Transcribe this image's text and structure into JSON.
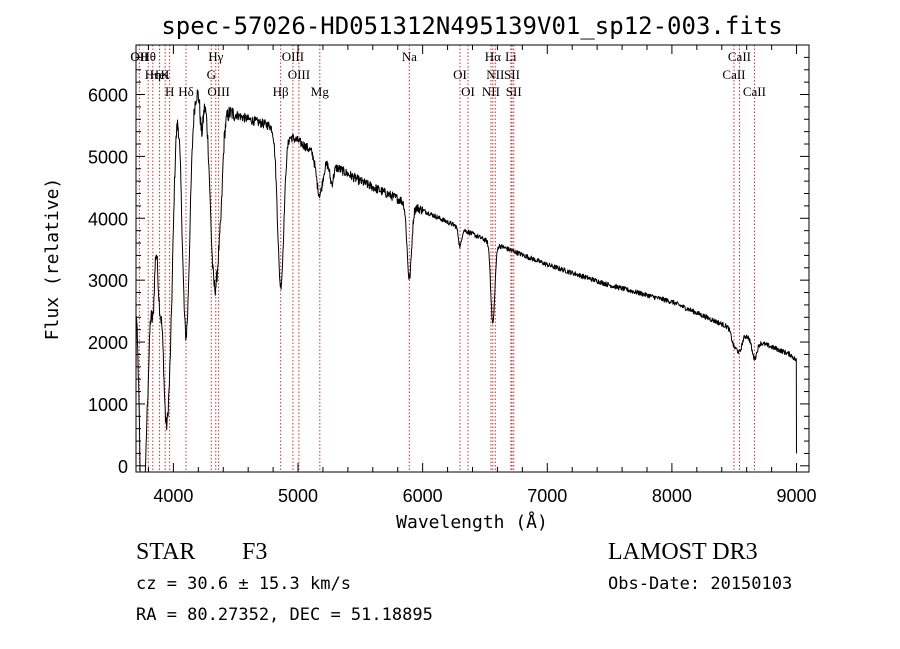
{
  "chart_data": {
    "type": "line",
    "title": "spec-57026-HD051312N495139V01_sp12-003.fits",
    "xlabel": "Wavelength (Å)",
    "ylabel": "Flux (relative)",
    "xlim": [
      3700,
      9100
    ],
    "ylim": [
      -100,
      6800
    ],
    "x_ticks": [
      4000,
      5000,
      6000,
      7000,
      8000,
      9000
    ],
    "y_ticks": [
      0,
      1000,
      2000,
      3000,
      4000,
      5000,
      6000
    ],
    "grid": false,
    "series": [
      {
        "name": "spectrum",
        "continuum": [
          [
            3700,
            4200
          ],
          [
            3760,
            5100
          ],
          [
            3850,
            5800
          ],
          [
            3950,
            6050
          ],
          [
            4050,
            6150
          ],
          [
            4200,
            6050
          ],
          [
            4400,
            5750
          ],
          [
            4600,
            5600
          ],
          [
            4800,
            5480
          ],
          [
            5000,
            5250
          ],
          [
            5200,
            4950
          ],
          [
            5500,
            4600
          ],
          [
            5900,
            4220
          ],
          [
            6000,
            4130
          ],
          [
            6500,
            3650
          ],
          [
            7000,
            3250
          ],
          [
            7500,
            2920
          ],
          [
            8000,
            2650
          ],
          [
            8500,
            2200
          ],
          [
            8700,
            2000
          ],
          [
            8950,
            1800
          ],
          [
            9000,
            1700
          ]
        ],
        "absorption": [
          [
            3734,
            3000,
            30
          ],
          [
            3750,
            3200,
            15
          ],
          [
            3771,
            2800,
            15
          ],
          [
            3798,
            2800,
            15
          ],
          [
            3835,
            3000,
            18
          ],
          [
            3889,
            3000,
            22
          ],
          [
            3934,
            3000,
            20
          ],
          [
            3970,
            4000,
            28
          ],
          [
            4101,
            4000,
            30
          ],
          [
            4227,
            600,
            12
          ],
          [
            4308,
            500,
            20
          ],
          [
            4340,
            2800,
            35
          ],
          [
            4384,
            400,
            12
          ],
          [
            4861,
            2500,
            25
          ],
          [
            5172,
            600,
            25
          ],
          [
            5270,
            300,
            15
          ],
          [
            5893,
            1200,
            18
          ],
          [
            6300,
            300,
            12
          ],
          [
            6563,
            1300,
            16
          ],
          [
            8498,
            250,
            20
          ],
          [
            8542,
            300,
            20
          ],
          [
            8662,
            300,
            20
          ]
        ]
      }
    ],
    "spectral_lines": [
      {
        "label": "Hθ",
        "wavelength": 3798
      },
      {
        "label": "K",
        "wavelength": 3934
      },
      {
        "label": "Hδ",
        "wavelength": 4101
      },
      {
        "label": "OII",
        "wavelength": 3727
      },
      {
        "label": "HeI",
        "wavelength": 3889
      },
      {
        "label": "H",
        "wavelength": 3970
      },
      {
        "label": "OII",
        "wavelength": 3727
      },
      {
        "label": "Hη",
        "wavelength": 3835
      },
      {
        "label": "OIII",
        "wavelength": 4363
      },
      {
        "label": "Hγ",
        "wavelength": 4340
      },
      {
        "label": "G",
        "wavelength": 4304
      },
      {
        "label": "Hβ",
        "wavelength": 4861
      },
      {
        "label": "OIII",
        "wavelength": 4959
      },
      {
        "label": "OIII",
        "wavelength": 5007
      },
      {
        "label": "Mg",
        "wavelength": 5175
      },
      {
        "label": "Na",
        "wavelength": 5893
      },
      {
        "label": "OI",
        "wavelength": 6300
      },
      {
        "label": "OI",
        "wavelength": 6364
      },
      {
        "label": "Hα",
        "wavelength": 6563
      },
      {
        "label": "SII",
        "wavelength": 6717
      },
      {
        "label": "NII",
        "wavelength": 6548
      },
      {
        "label": "Li",
        "wavelength": 6708
      },
      {
        "label": "NII",
        "wavelength": 6583
      },
      {
        "label": "SII",
        "wavelength": 6731
      },
      {
        "label": "CaII",
        "wavelength": 8542
      },
      {
        "label": "CaII",
        "wavelength": 8498
      },
      {
        "label": "CaII",
        "wavelength": 8662
      }
    ]
  },
  "info": {
    "object_type": "STAR",
    "subclass": "F3",
    "survey": "LAMOST DR3",
    "cz": "cz = 30.6 ± 15.3 km/s",
    "obs_date": "Obs-Date: 20150103",
    "coords": "RA =  80.27352, DEC =  51.18895"
  }
}
